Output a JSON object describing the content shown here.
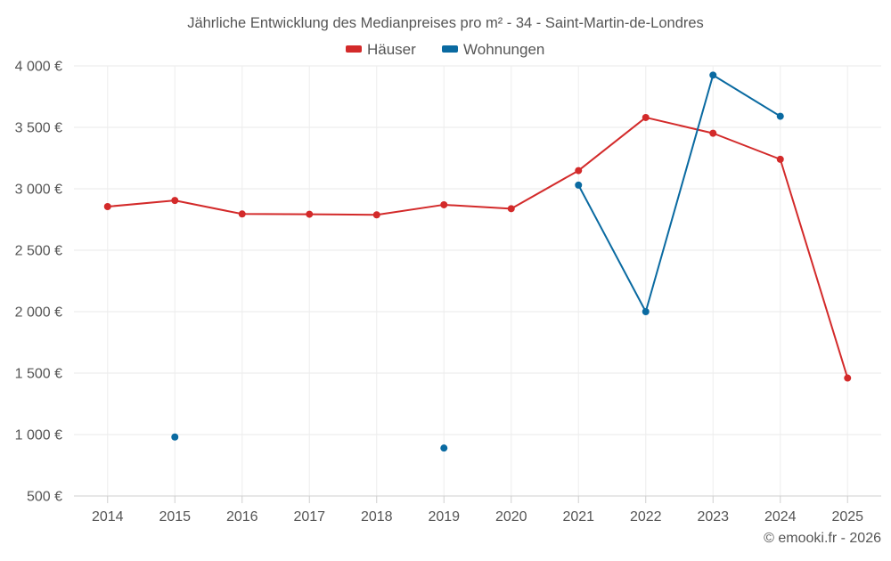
{
  "chart_data": {
    "type": "line",
    "title": "Jährliche Entwicklung des Medianpreises pro m² - 34 - Saint-Martin-de-Londres",
    "categories": [
      "2014",
      "2015",
      "2016",
      "2017",
      "2018",
      "2019",
      "2020",
      "2021",
      "2022",
      "2023",
      "2024",
      "2025"
    ],
    "ylim": [
      500,
      4000
    ],
    "yticks": [
      500,
      1000,
      1500,
      2000,
      2500,
      3000,
      3500,
      4000
    ],
    "ytick_labels": [
      "500 €",
      "1 000 €",
      "1 500 €",
      "2 000 €",
      "2 500 €",
      "3 000 €",
      "3 500 €",
      "4 000 €"
    ],
    "grid": true,
    "legend_position": "top-center",
    "series": [
      {
        "name": "Häuser",
        "color": "#d32a2a",
        "values": [
          2855,
          2905,
          2795,
          2793,
          2788,
          2870,
          2838,
          3148,
          3580,
          3452,
          3240,
          1460
        ]
      },
      {
        "name": "Wohnungen",
        "color": "#0a6aa1",
        "values": [
          null,
          980,
          null,
          null,
          null,
          890,
          null,
          3030,
          2000,
          3925,
          3590,
          null
        ]
      }
    ],
    "credit": "© emooki.fr - 2026"
  }
}
